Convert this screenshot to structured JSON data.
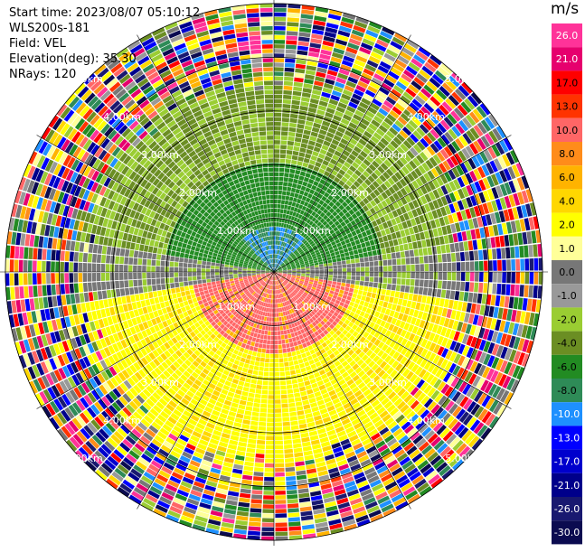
{
  "header": {
    "start_time": "Start time: 2023/08/07 05:10:12",
    "instrument": "WLS200s-181",
    "field": "Field: VEL",
    "elevation": "Elevation(deg): 35.30",
    "nrays": "NRays: 120"
  },
  "chart_data": {
    "type": "heatmap",
    "projection": "polar-ppi",
    "colorbar_unit": "m/s",
    "colorbar_ticks": [
      "26.0",
      "21.0",
      "17.0",
      "13.0",
      "10.0",
      "8.0",
      "6.0",
      "4.0",
      "2.0",
      "1.0",
      "0.0",
      "-1.0",
      "-2.0",
      "-4.0",
      "-6.0",
      "-8.0",
      "-10.0",
      "-13.0",
      "-17.0",
      "-21.0",
      "-26.0",
      "-30.0"
    ],
    "colorbar_colors": [
      "#ff3399",
      "#e6006e",
      "#ff0000",
      "#ff3300",
      "#ff6666",
      "#ff8c1a",
      "#ffb300",
      "#ffd700",
      "#ffff00",
      "#ffff99",
      "#777777",
      "#999999",
      "#9acd32",
      "#6b8e23",
      "#228b22",
      "#2e8b57",
      "#1e90ff",
      "#0000ff",
      "#0000cd",
      "#00008b",
      "#191970",
      "#0b0b50"
    ],
    "range_rings_km": [
      "1.00km",
      "2.00km",
      "3.00km",
      "4.00km",
      "5.00km"
    ],
    "range_label_angles_deg": [
      45,
      135,
      225,
      315
    ],
    "n_rays": 120,
    "max_range_km": 5.1,
    "velocity_field": {
      "inner_toward_sector_deg": [
        270,
        90
      ],
      "inner_away_sector_deg": [
        90,
        270
      ],
      "noise_beyond_km": 3.9
    }
  }
}
